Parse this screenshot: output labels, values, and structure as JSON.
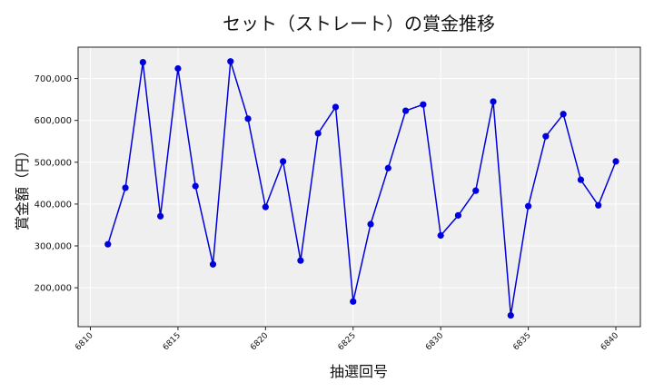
{
  "chart_data": {
    "type": "line",
    "title": "セット（ストレート）の賞金推移",
    "xlabel": "抽選回号",
    "ylabel": "賞金額（円）",
    "x": [
      6811,
      6812,
      6813,
      6814,
      6815,
      6816,
      6817,
      6818,
      6819,
      6820,
      6821,
      6822,
      6823,
      6824,
      6825,
      6826,
      6827,
      6828,
      6829,
      6830,
      6831,
      6832,
      6833,
      6834,
      6835,
      6836,
      6837,
      6838,
      6839,
      6840
    ],
    "series": [
      {
        "name": "セット（ストレート）",
        "color": "#0000dd",
        "values": [
          304000,
          439000,
          739000,
          371000,
          724000,
          443000,
          256000,
          741000,
          604000,
          393000,
          502000,
          265000,
          569000,
          632000,
          167000,
          352000,
          486000,
          623000,
          638000,
          325000,
          373000,
          432000,
          645000,
          134000,
          395000,
          562000,
          615000,
          458000,
          397000,
          502000
        ]
      }
    ],
    "xticks": [
      6810,
      6815,
      6820,
      6825,
      6830,
      6835,
      6840
    ],
    "yticks": [
      200000,
      300000,
      400000,
      500000,
      600000,
      700000
    ],
    "ytick_labels": [
      "200,000",
      "300,000",
      "400,000",
      "500,000",
      "600,000",
      "700,000"
    ],
    "xlim": [
      6809.3,
      6841.4
    ],
    "ylim": [
      107000,
      775000
    ],
    "grid": true,
    "legend": "none",
    "plot_bg": "#efefef",
    "grid_color": "#ffffff",
    "line_color": "#0000dd"
  }
}
